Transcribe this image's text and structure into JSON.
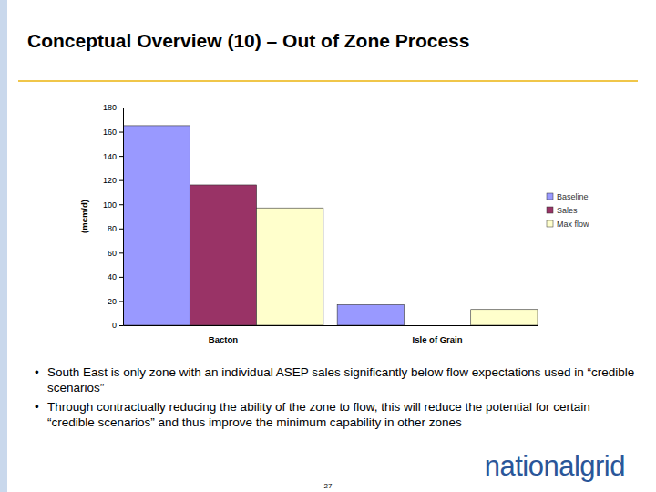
{
  "slide": {
    "title": "Conceptual Overview (10) – Out of Zone Process",
    "bullets": [
      "South East is only zone with an individual ASEP sales significantly below flow expectations used in “credible scenarios”",
      "Through contractually reducing the ability of the zone to flow, this will reduce the potential for certain “credible scenarios” and thus improve the minimum capability in other zones"
    ],
    "logo": "nationalgrid",
    "page_number": 27
  },
  "chart_data": {
    "type": "bar",
    "y_label": "(mcm/d)",
    "categories": [
      "Bacton",
      "Isle of Grain"
    ],
    "series": [
      {
        "name": "Baseline",
        "color": "#9999ff",
        "values": [
          165,
          17
        ]
      },
      {
        "name": "Sales",
        "color": "#993366",
        "values": [
          116,
          0
        ]
      },
      {
        "name": "Max flow",
        "color": "#ffffcc",
        "values": [
          97,
          13
        ]
      }
    ],
    "ylim": [
      0,
      180
    ],
    "yticks": [
      0,
      20,
      40,
      60,
      80,
      100,
      120,
      140,
      160,
      180
    ],
    "grid": false,
    "legend": "right"
  }
}
